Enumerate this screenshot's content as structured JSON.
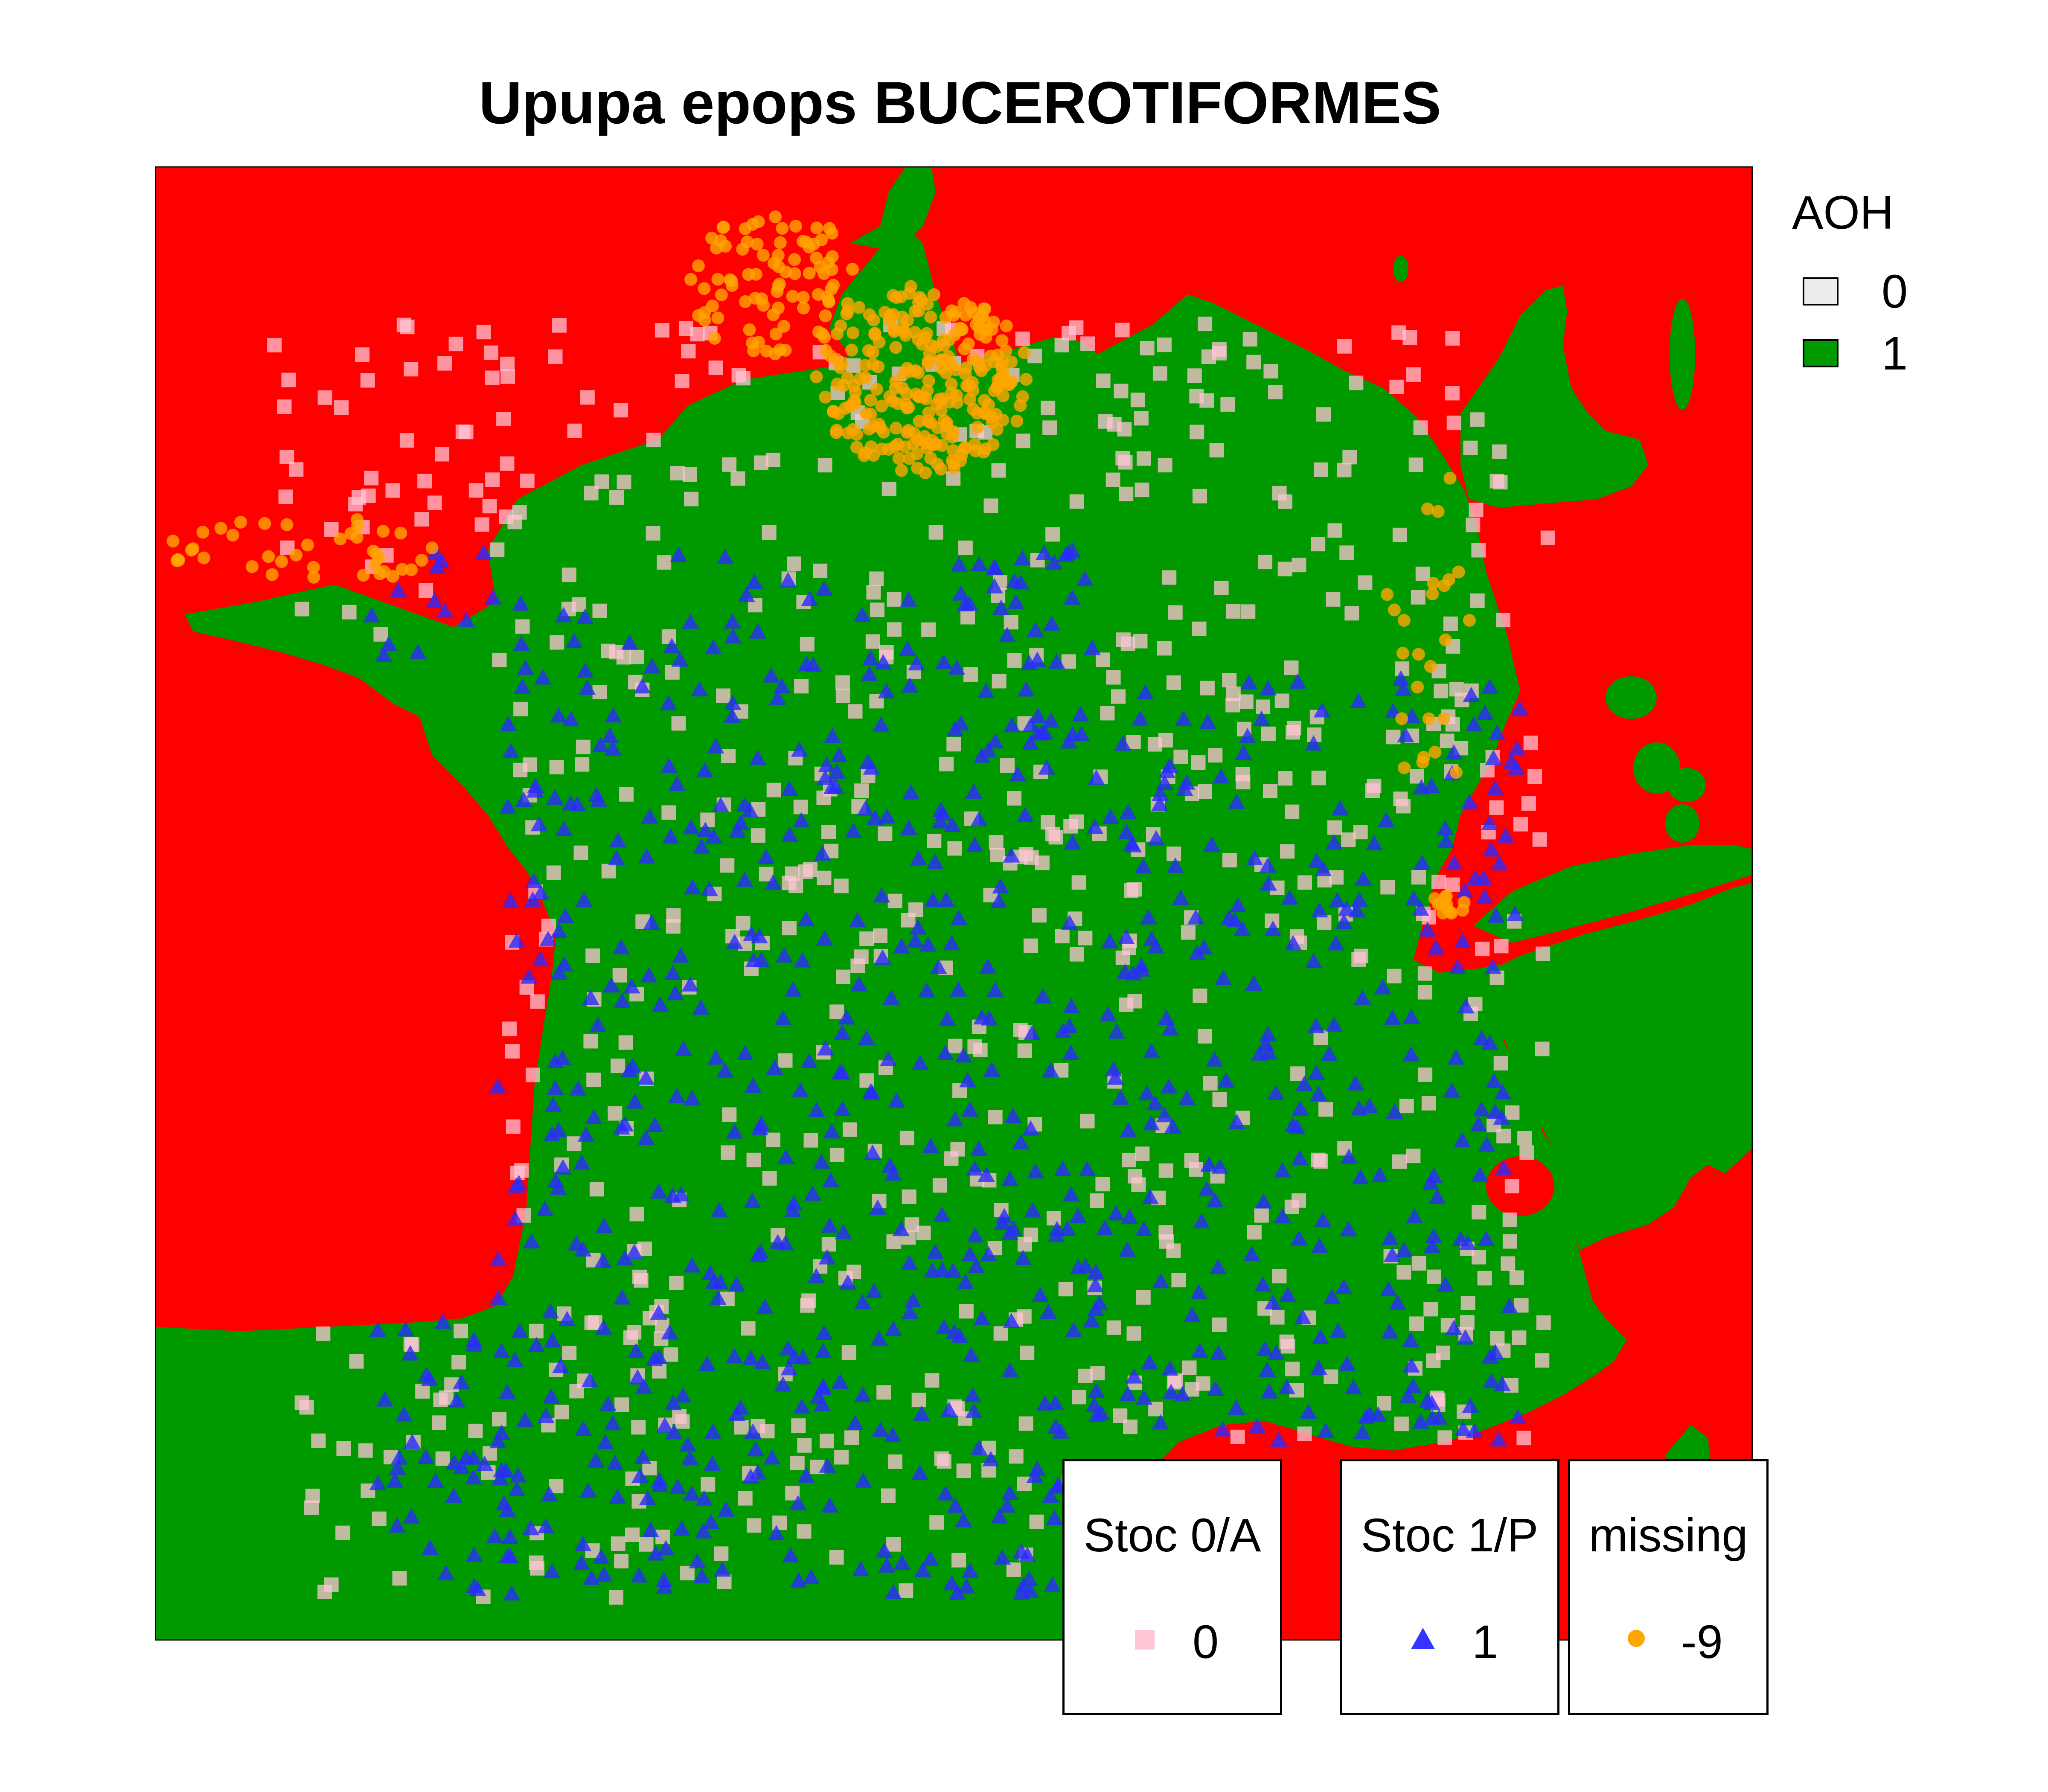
{
  "title": "Upupa epops BUCEROTIFORMES",
  "colors": {
    "background_absent": "#ff0000",
    "habitat_present": "#009900",
    "habitat_absent": "#ededed",
    "stoc_0": "#ffc6d6",
    "stoc_1": "#2b2bff",
    "missing": "#ffa500"
  },
  "legend_aoh": {
    "title": "AOH",
    "items": [
      {
        "label": "0",
        "color": "#ededed"
      },
      {
        "label": "1",
        "color": "#009900"
      }
    ]
  },
  "legend_boxes": [
    {
      "title": "Stoc 0/A",
      "value": "0",
      "marker": "square",
      "color": "#ffc6d6"
    },
    {
      "title": "Stoc 1/P",
      "value": "1",
      "marker": "triangle",
      "color": "#2b2bff"
    },
    {
      "title": "missing",
      "value": "-9",
      "marker": "circle",
      "color": "#ffa500"
    }
  ]
}
